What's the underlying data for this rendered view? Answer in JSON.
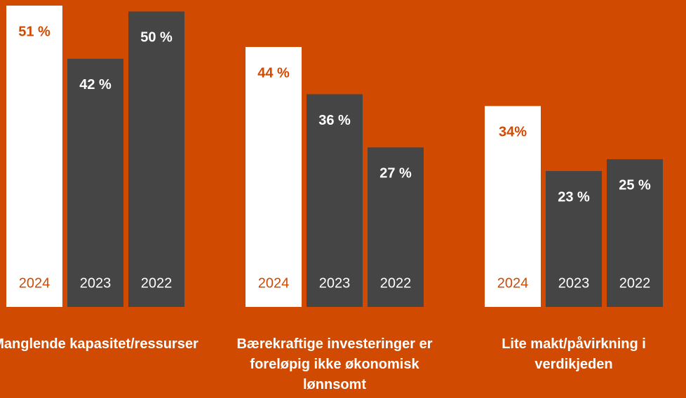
{
  "chart_data": {
    "type": "bar",
    "categories": [
      "Manglende kapasitet/ressurser",
      "Bærekraftige investeringer er foreløpig ikke økonomisk lønnsomt",
      "Lite makt/påvirkning i verdikjeden"
    ],
    "series": [
      {
        "name": "2024",
        "color": "#ffffff",
        "values": [
          51,
          44,
          34
        ],
        "value_labels": [
          "51 %",
          "44 %",
          "34%"
        ]
      },
      {
        "name": "2023",
        "color": "#454545",
        "values": [
          42,
          36,
          23
        ],
        "value_labels": [
          "42 %",
          "36 %",
          "23 %"
        ]
      },
      {
        "name": "2022",
        "color": "#454545",
        "values": [
          50,
          27,
          25
        ],
        "value_labels": [
          "50 %",
          "27 %",
          "25 %"
        ]
      }
    ],
    "background": "#d04a02"
  }
}
